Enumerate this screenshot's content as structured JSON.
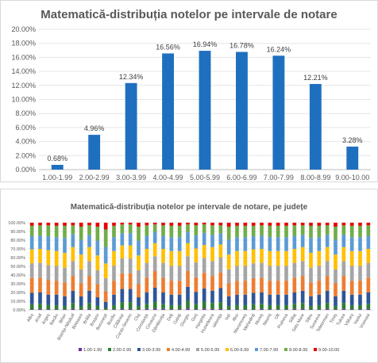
{
  "chart_data": [
    {
      "type": "bar",
      "title": "Matematică-distribuția notelor pe intervale de notare",
      "categories": [
        "1.00-1.99",
        "2.00-2.99",
        "3.00-3.99",
        "4.00-4.99",
        "5.00-5.99",
        "6.00-6.99",
        "7.00-7.99",
        "8.00-8.99",
        "9.00-10.00"
      ],
      "values": [
        0.68,
        4.96,
        12.34,
        16.56,
        16.94,
        16.78,
        16.24,
        12.21,
        3.28
      ],
      "value_labels": [
        "0.68%",
        "4.96%",
        "12.34%",
        "16.56%",
        "16.94%",
        "16.78%",
        "16.24%",
        "12.21%",
        "3.28%"
      ],
      "yticks": [
        "0.00%",
        "2.00%",
        "4.00%",
        "6.00%",
        "8.00%",
        "10.00%",
        "12.00%",
        "14.00%",
        "16.00%",
        "18.00%",
        "20.00%"
      ],
      "ylim": [
        0,
        20
      ],
      "color": "#1F6FBF",
      "grid": true
    },
    {
      "type": "bar",
      "stacked": true,
      "percent": true,
      "title": "Matematică-distribuția notelor pe intervale de notare, pe județe",
      "categories": [
        "Alba",
        "Arad",
        "Argeș",
        "Bacău",
        "Bihor",
        "Bistrița-Năsăud",
        "Botoșani",
        "Brăila",
        "Brașov",
        "București",
        "Buzău",
        "Călărași",
        "Caraș-Severin",
        "Cluj",
        "Constanța",
        "Covasna",
        "Dâmbovița",
        "Dolj",
        "Galați",
        "Giurgiu",
        "Gorj",
        "Harghita",
        "Hunedoara",
        "Ialomița",
        "Iași",
        "Ilfov",
        "Maramureș",
        "Mehedinți",
        "Mureș",
        "Neamț",
        "Olt",
        "Prahova",
        "Sălaj",
        "Satu Mare",
        "Sibiu",
        "Suceava",
        "Teleorman",
        "Timiș",
        "Tulcea",
        "Vâlcea",
        "Vaslui",
        "Vrancea"
      ],
      "yticks": [
        "0.00%",
        "10.00%",
        "20.00%",
        "30.00%",
        "40.00%",
        "50.00%",
        "60.00%",
        "70.00%",
        "80.00%",
        "90.00%",
        "100.00%"
      ],
      "ylim": [
        0,
        100
      ],
      "series_legend": [
        "1.00-1.99",
        "2.00-2.99",
        "3.00-3.99",
        "4.00-4.99",
        "5.00-5.99",
        "6.00-6.99",
        "7.00-7.99",
        "8.00-8.99",
        "9.00-10.00"
      ],
      "series_colors": [
        "#7030A0",
        "#2E7D32",
        "#2F5597",
        "#ED7D31",
        "#A5A5A5",
        "#FFC000",
        "#5B9BD5",
        "#70AD47",
        "#E60000"
      ],
      "shares": [
        [
          0.5,
          6,
          13,
          17,
          17,
          16,
          15,
          12,
          3.5
        ],
        [
          1,
          6,
          13,
          17,
          17,
          16,
          15,
          12,
          3
        ],
        [
          0.5,
          5,
          12,
          17,
          17,
          17,
          16,
          12.5,
          3
        ],
        [
          0.5,
          5,
          12,
          16,
          17,
          17,
          16,
          13,
          3.5
        ],
        [
          0.5,
          4,
          11,
          16,
          17,
          17,
          17,
          14,
          3.5
        ],
        [
          1,
          7,
          14,
          17,
          17,
          16,
          15,
          10,
          3
        ],
        [
          0.5,
          4,
          11,
          15,
          16,
          17,
          17,
          15,
          4.5
        ],
        [
          1,
          7,
          14,
          17,
          17,
          16,
          14,
          11,
          3
        ],
        [
          0.5,
          4,
          10,
          15,
          16,
          17,
          17,
          16,
          4.5
        ],
        [
          0.3,
          2,
          7,
          12,
          15,
          17,
          19,
          20,
          7.7
        ],
        [
          0.5,
          5,
          12,
          16,
          17,
          17,
          16,
          13,
          3.5
        ],
        [
          1,
          8,
          15,
          18,
          17,
          15,
          14,
          10,
          2
        ],
        [
          1,
          8,
          15,
          18,
          17,
          15,
          14,
          10,
          2
        ],
        [
          0.5,
          4,
          10,
          15,
          16,
          17,
          17,
          16,
          4.5
        ],
        [
          1,
          6,
          13,
          17,
          17,
          16,
          15,
          12,
          3
        ],
        [
          1.5,
          8,
          16,
          19,
          17,
          15,
          13,
          8.5,
          2
        ],
        [
          1,
          6,
          13,
          17,
          17,
          16,
          15,
          12,
          3
        ],
        [
          0.5,
          5,
          12,
          16,
          17,
          17,
          16,
          13,
          3.5
        ],
        [
          0.5,
          5,
          12,
          16,
          17,
          17,
          16,
          13,
          3.5
        ],
        [
          1.5,
          9,
          16,
          18,
          17,
          15,
          13,
          8.5,
          2
        ],
        [
          0.5,
          6,
          14,
          17,
          17,
          16,
          15,
          11.5,
          3
        ],
        [
          1.5,
          8,
          15,
          18,
          17,
          15,
          14,
          9.5,
          2
        ],
        [
          1,
          7,
          14,
          17,
          17,
          16,
          14,
          11,
          3
        ],
        [
          1,
          8,
          16,
          18,
          17,
          15,
          13,
          9,
          3
        ],
        [
          0.5,
          4,
          11,
          15,
          16,
          17,
          17,
          15,
          4.5
        ],
        [
          0.5,
          5,
          12,
          16,
          17,
          17,
          16,
          13,
          3.5
        ],
        [
          0.5,
          5,
          12,
          16,
          17,
          17,
          16,
          13,
          3.5
        ],
        [
          0.5,
          6,
          13,
          17,
          17,
          16,
          15,
          12,
          3.5
        ],
        [
          1,
          6,
          13,
          17,
          17,
          16,
          15,
          12,
          3
        ],
        [
          0.5,
          5,
          12,
          16,
          17,
          17,
          16,
          13,
          3.5
        ],
        [
          0.5,
          5,
          12,
          16,
          17,
          17,
          16,
          13,
          3.5
        ],
        [
          0.5,
          5,
          12,
          16,
          17,
          17,
          16,
          13,
          3.5
        ],
        [
          1,
          6,
          13,
          17,
          17,
          16,
          15,
          12,
          3
        ],
        [
          1,
          7,
          14,
          17,
          17,
          16,
          14,
          11,
          3
        ],
        [
          0.5,
          4,
          11,
          16,
          17,
          17,
          17,
          14,
          3.5
        ],
        [
          0.5,
          5,
          12,
          16,
          17,
          17,
          16,
          13,
          3.5
        ],
        [
          1,
          7,
          14,
          17,
          17,
          16,
          14,
          11,
          3
        ],
        [
          0.5,
          4,
          11,
          15,
          16,
          17,
          17,
          15,
          4.5
        ],
        [
          1,
          7,
          14,
          17,
          17,
          16,
          14,
          11,
          3
        ],
        [
          0.5,
          5,
          12,
          16,
          17,
          17,
          16,
          13,
          3.5
        ],
        [
          0.5,
          5,
          12,
          16,
          17,
          17,
          16,
          13,
          3.5
        ],
        [
          1,
          6,
          13,
          17,
          17,
          16,
          15,
          12,
          3
        ]
      ],
      "grid": true,
      "legend_position": "bottom"
    }
  ]
}
